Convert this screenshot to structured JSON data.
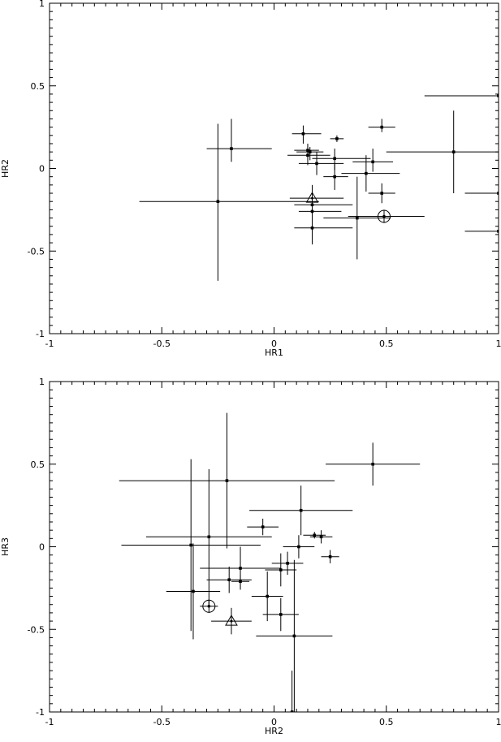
{
  "chart_data": [
    {
      "type": "scatter",
      "title": "",
      "xlabel": "HR1",
      "ylabel": "HR2",
      "xlim": [
        -1,
        1
      ],
      "ylim": [
        -1,
        1
      ],
      "xticks": [
        "-1",
        "-0.5",
        "0",
        "0.5",
        "1"
      ],
      "yticks": [
        "-1",
        "-0.5",
        "0",
        "0.5",
        "1"
      ],
      "grid": false,
      "points": [
        {
          "x": -0.25,
          "y": -0.2,
          "xerr": [
            0.35,
            0.45
          ],
          "yerr": [
            0.48,
            0.47
          ]
        },
        {
          "x": -0.19,
          "y": 0.12,
          "xerr": [
            0.11,
            0.18
          ],
          "yerr": [
            0.08,
            0.18
          ]
        },
        {
          "x": 0.13,
          "y": 0.21,
          "xerr": [
            0.05,
            0.08
          ],
          "yerr": [
            0.06,
            0.05
          ]
        },
        {
          "x": 0.15,
          "y": 0.11,
          "xerr": [
            0.06,
            0.05
          ],
          "yerr": [
            0.06,
            0.04
          ]
        },
        {
          "x": 0.15,
          "y": 0.08,
          "xerr": [
            0.09,
            0.1
          ],
          "yerr": [
            0.06,
            0.06
          ]
        },
        {
          "x": 0.16,
          "y": 0.1,
          "xerr": [
            0.06,
            0.06
          ],
          "yerr": [
            0.05,
            0.03
          ]
        },
        {
          "x": 0.19,
          "y": 0.03,
          "xerr": [
            0.08,
            0.12
          ],
          "yerr": [
            0.07,
            0.07
          ]
        },
        {
          "x": 0.28,
          "y": 0.18,
          "xerr": [
            0.03,
            0.03
          ],
          "yerr": [
            0.02,
            0.02
          ]
        },
        {
          "x": 0.27,
          "y": 0.06,
          "xerr": [
            0.1,
            0.16
          ],
          "yerr": [
            0.07,
            0.06
          ]
        },
        {
          "x": 0.27,
          "y": -0.05,
          "xerr": [
            0.05,
            0.06
          ],
          "yerr": [
            0.08,
            0.08
          ]
        },
        {
          "x": 0.17,
          "y": -0.22,
          "xerr": [
            0.08,
            0.18
          ],
          "yerr": [
            0.04,
            0.03
          ]
        },
        {
          "x": 0.17,
          "y": -0.26,
          "xerr": [
            0.06,
            0.13
          ],
          "yerr": [
            0.06,
            0.07
          ]
        },
        {
          "x": 0.17,
          "y": -0.36,
          "xerr": [
            0.08,
            0.18
          ],
          "yerr": [
            0.1,
            0.1
          ]
        },
        {
          "x": 0.37,
          "y": -0.3,
          "xerr": [
            0.15,
            0.15
          ],
          "yerr": [
            0.25,
            0.25
          ]
        },
        {
          "x": 0.41,
          "y": -0.03,
          "xerr": [
            0.11,
            0.15
          ],
          "yerr": [
            0.11,
            0.11
          ]
        },
        {
          "x": 0.44,
          "y": 0.04,
          "xerr": [
            0.09,
            0.09
          ],
          "yerr": [
            0.06,
            0.08
          ]
        },
        {
          "x": 0.48,
          "y": 0.25,
          "xerr": [
            0.06,
            0.06
          ],
          "yerr": [
            0.03,
            0.05
          ]
        },
        {
          "x": 0.48,
          "y": -0.15,
          "xerr": [
            0.06,
            0.06
          ],
          "yerr": [
            0.06,
            0.06
          ]
        },
        {
          "x": 0.8,
          "y": 0.1,
          "xerr": [
            0.3,
            0.2
          ],
          "yerr": [
            0.25,
            0.25
          ]
        },
        {
          "x": 1.0,
          "y": 0.44,
          "xerr": [
            0.33,
            0.0
          ],
          "yerr": [
            0.0,
            0.0
          ]
        },
        {
          "x": 1.0,
          "y": -0.15,
          "xerr": [
            0.15,
            0.0
          ],
          "yerr": [
            0.0,
            0.0
          ]
        },
        {
          "x": 1.0,
          "y": -0.38,
          "xerr": [
            0.15,
            0.0
          ],
          "yerr": [
            0.0,
            0.0
          ]
        }
      ],
      "markers": [
        {
          "symbol": "circle",
          "x": 0.49,
          "y": -0.29,
          "xerr": [
            0.16,
            0.18
          ],
          "yerr": [
            0.04,
            0.04
          ]
        },
        {
          "symbol": "triangle",
          "x": 0.17,
          "y": -0.18,
          "xerr": [
            0.1,
            0.14
          ],
          "yerr": [
            0.08,
            0.08
          ]
        }
      ]
    },
    {
      "type": "scatter",
      "title": "",
      "xlabel": "HR2",
      "ylabel": "HR3",
      "xlim": [
        -1,
        1
      ],
      "ylim": [
        -1,
        1
      ],
      "xticks": [
        "-1",
        "-0.5",
        "0",
        "0.5",
        "1"
      ],
      "yticks": [
        "-1",
        "-0.5",
        "0",
        "0.5",
        "1"
      ],
      "grid": false,
      "points": [
        {
          "x": 0.44,
          "y": 0.5,
          "xerr": [
            0.21,
            0.21
          ],
          "yerr": [
            0.13,
            0.13
          ]
        },
        {
          "x": -0.21,
          "y": 0.4,
          "xerr": [
            0.48,
            0.48
          ],
          "yerr": [
            0.41,
            0.41
          ]
        },
        {
          "x": -0.29,
          "y": 0.06,
          "xerr": [
            0.28,
            0.28
          ],
          "yerr": [
            0.41,
            0.41
          ]
        },
        {
          "x": -0.37,
          "y": 0.01,
          "xerr": [
            0.31,
            0.31
          ],
          "yerr": [
            0.52,
            0.52
          ]
        },
        {
          "x": -0.05,
          "y": 0.12,
          "xerr": [
            0.07,
            0.07
          ],
          "yerr": [
            0.05,
            0.05
          ]
        },
        {
          "x": 0.12,
          "y": 0.22,
          "xerr": [
            0.23,
            0.23
          ],
          "yerr": [
            0.15,
            0.15
          ]
        },
        {
          "x": 0.18,
          "y": 0.07,
          "xerr": [
            0.05,
            0.05
          ],
          "yerr": [
            0.02,
            0.02
          ]
        },
        {
          "x": 0.21,
          "y": 0.06,
          "xerr": [
            0.05,
            0.05
          ],
          "yerr": [
            0.04,
            0.04
          ]
        },
        {
          "x": 0.11,
          "y": 0.0,
          "xerr": [
            0.07,
            0.07
          ],
          "yerr": [
            0.07,
            0.07
          ]
        },
        {
          "x": 0.25,
          "y": -0.06,
          "xerr": [
            0.04,
            0.04
          ],
          "yerr": [
            0.04,
            0.04
          ]
        },
        {
          "x": 0.06,
          "y": -0.1,
          "xerr": [
            0.07,
            0.07
          ],
          "yerr": [
            0.07,
            0.07
          ]
        },
        {
          "x": 0.03,
          "y": -0.14,
          "xerr": [
            0.07,
            0.07
          ],
          "yerr": [
            0.1,
            0.1
          ]
        },
        {
          "x": -0.15,
          "y": -0.13,
          "xerr": [
            0.18,
            0.18
          ],
          "yerr": [
            0.13,
            0.13
          ]
        },
        {
          "x": -0.2,
          "y": -0.2,
          "xerr": [
            0.1,
            0.1
          ],
          "yerr": [
            0.08,
            0.08
          ]
        },
        {
          "x": -0.36,
          "y": -0.27,
          "xerr": [
            0.12,
            0.12
          ],
          "yerr": [
            0.29,
            0.29
          ]
        },
        {
          "x": -0.03,
          "y": -0.3,
          "xerr": [
            0.07,
            0.07
          ],
          "yerr": [
            0.15,
            0.15
          ]
        },
        {
          "x": 0.03,
          "y": -0.41,
          "xerr": [
            0.08,
            0.08
          ],
          "yerr": [
            0.1,
            0.1
          ]
        },
        {
          "x": -0.15,
          "y": -0.21,
          "xerr": [
            0.04,
            0.04
          ],
          "yerr": [
            0.04,
            0.04
          ]
        },
        {
          "x": 0.09,
          "y": -0.54,
          "xerr": [
            0.17,
            0.17
          ],
          "yerr": [
            0.46,
            0.46
          ]
        },
        {
          "x": 0.08,
          "y": -1.0,
          "xerr": [
            0.0,
            0.0
          ],
          "yerr": [
            0.0,
            0.25
          ]
        }
      ],
      "markers": [
        {
          "symbol": "circle",
          "x": -0.29,
          "y": -0.36,
          "xerr": [
            0.04,
            0.04
          ],
          "yerr": [
            0.04,
            0.04
          ]
        },
        {
          "symbol": "triangle",
          "x": -0.19,
          "y": -0.45,
          "xerr": [
            0.09,
            0.09
          ],
          "yerr": [
            0.08,
            0.08
          ]
        }
      ]
    }
  ]
}
